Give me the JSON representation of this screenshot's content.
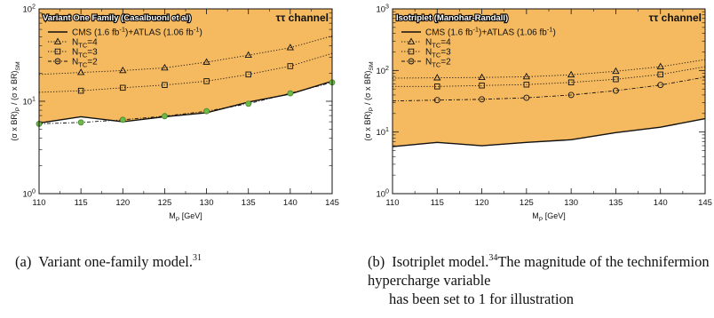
{
  "chart_data": [
    {
      "type": "line",
      "title": "Variant One Family (Casalbuoni et al)",
      "annotation": "ττ channel",
      "xlabel": "M_P [GeV]",
      "ylabel": "(σ x BR)_P / (σ x BR)_SM",
      "xlim": [
        110,
        145
      ],
      "ylim": [
        1,
        100
      ],
      "yscale": "log",
      "x_ticks": [
        "110",
        "115",
        "120",
        "125",
        "130",
        "135",
        "140",
        "145"
      ],
      "y_ticks": [
        "10^0",
        "10^1",
        "10^2"
      ],
      "grid": false,
      "legend_position": "top-left",
      "x": [
        110,
        115,
        120,
        125,
        130,
        135,
        140,
        145
      ],
      "series": [
        {
          "name": "CMS (1.6 fb^-1)+ATLAS (1.06 fb^-1)",
          "style": "solid",
          "marker": "none",
          "values": [
            5.8,
            6.8,
            6.0,
            6.8,
            7.5,
            9.8,
            12.0,
            16.5
          ]
        },
        {
          "name": "N_TC=4",
          "style": "dotted",
          "marker": "triangle",
          "values": [
            19.5,
            20.5,
            21.5,
            23.0,
            26.5,
            31.5,
            38.0,
            51.0
          ]
        },
        {
          "name": "N_TC=3",
          "style": "dotted",
          "marker": "square",
          "values": [
            12.5,
            13.0,
            14.0,
            15.0,
            16.5,
            19.5,
            24.0,
            33.0
          ]
        },
        {
          "name": "N_TC=2",
          "style": "dash-dot",
          "marker": "circle",
          "values": [
            5.7,
            5.9,
            6.3,
            6.9,
            7.8,
            9.4,
            12.2,
            16.0
          ]
        }
      ],
      "colors": {
        "excluded_region": "#f5b95f",
        "excluded_points": "#6fb94a"
      }
    },
    {
      "type": "line",
      "title": "Isotriplet (Manohar-Randall)",
      "annotation": "ττ channel",
      "xlabel": "M_P [GeV]",
      "ylabel": "(σ x BR)_P / (σ x BR)_SM",
      "xlim": [
        110,
        145
      ],
      "ylim": [
        1,
        1000
      ],
      "yscale": "log",
      "x_ticks": [
        "110",
        "115",
        "120",
        "125",
        "130",
        "135",
        "140",
        "145"
      ],
      "y_ticks": [
        "10^0",
        "10^1",
        "10^2",
        "10^3"
      ],
      "grid": false,
      "legend_position": "top-left",
      "x": [
        110,
        115,
        120,
        125,
        130,
        135,
        140,
        145
      ],
      "series": [
        {
          "name": "CMS (1.6 fb^-1)+ATLAS (1.06 fb^-1)",
          "style": "solid",
          "marker": "none",
          "values": [
            5.8,
            6.8,
            6.0,
            6.8,
            7.5,
            9.8,
            12.0,
            16.5
          ]
        },
        {
          "name": "N_TC=4",
          "style": "dotted",
          "marker": "triangle",
          "values": [
            75,
            76,
            77,
            79,
            85,
            97,
            115,
            150
          ]
        },
        {
          "name": "N_TC=3",
          "style": "dotted",
          "marker": "square",
          "values": [
            55,
            55,
            57,
            59,
            64,
            72,
            86,
            115
          ]
        },
        {
          "name": "N_TC=2",
          "style": "dash-dot",
          "marker": "circle",
          "values": [
            32,
            33,
            34,
            36,
            40,
            47,
            58,
            78
          ]
        }
      ],
      "colors": {
        "excluded_region": "#f5b95f"
      }
    }
  ],
  "captions": {
    "a": {
      "tag": "(a)",
      "text": "Variant one-family model.",
      "ref": "31"
    },
    "b": {
      "tag": "(b)",
      "text": "Isotriplet model.",
      "ref": "34",
      "text2": "The magnitude of the technifermion hypercharge variable",
      "line3": "has been set to 1 for illustration"
    }
  }
}
